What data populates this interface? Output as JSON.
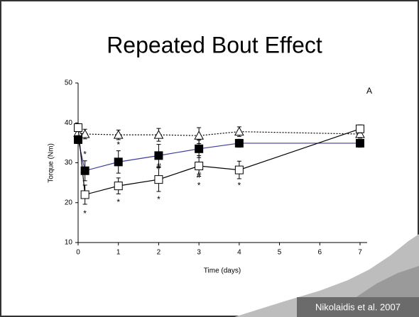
{
  "chart_data": {
    "type": "line",
    "title": "Repeated Bout Effect",
    "x_label": "Time (days)",
    "y_label": "Torque (Nm)",
    "credit": "Nikolaidis et al. 2007",
    "x": [
      0,
      0.17,
      1,
      2,
      3,
      4,
      7
    ],
    "xlim": [
      0,
      7
    ],
    "xticks": [
      0,
      1,
      2,
      3,
      4,
      5,
      6,
      7
    ],
    "ylim": [
      10,
      50
    ],
    "yticks": [
      10,
      20,
      30,
      40,
      50
    ],
    "series": [
      {
        "marker": "open-triangle",
        "line_style": "dotted",
        "color": "#000000",
        "values": [
          37.5,
          37.2,
          37,
          37,
          36.8,
          37.8,
          37.2
        ],
        "errors": [
          1,
          1.2,
          1.2,
          1.6,
          2,
          1.2,
          1
        ]
      },
      {
        "marker": "filled-square",
        "line_style": "solid",
        "color": "#3c3c9c",
        "values": [
          35.8,
          28,
          30.2,
          31.8,
          33.5,
          34.9,
          34.9
        ],
        "errors": [
          1,
          2.5,
          2.8,
          2.8,
          2.2,
          1,
          1
        ]
      },
      {
        "marker": "open-square",
        "line_style": "solid",
        "color": "#000000",
        "values": [
          38.8,
          22,
          24.2,
          25.8,
          29.2,
          28.2,
          38.5
        ],
        "errors": [
          1,
          2.4,
          2,
          3,
          2.6,
          2.2,
          1
        ]
      }
    ],
    "annotations": [
      {
        "text": "*",
        "x": 0.17,
        "y": 32
      },
      {
        "text": "*",
        "x": 0.17,
        "y": 17.1
      },
      {
        "text": "*",
        "x": 1,
        "y": 34.4
      },
      {
        "text": "*",
        "x": 1,
        "y": 20
      },
      {
        "text": "#",
        "x": 2,
        "y": 29
      },
      {
        "text": "*",
        "x": 2,
        "y": 20.7
      },
      {
        "text": "#",
        "x": 3,
        "y": 26.7
      },
      {
        "text": "*",
        "x": 3,
        "y": 24.2
      },
      {
        "text": "*",
        "x": 4,
        "y": 24.2
      },
      {
        "text": "A",
        "x": 7.23,
        "y": 47.9
      }
    ]
  }
}
